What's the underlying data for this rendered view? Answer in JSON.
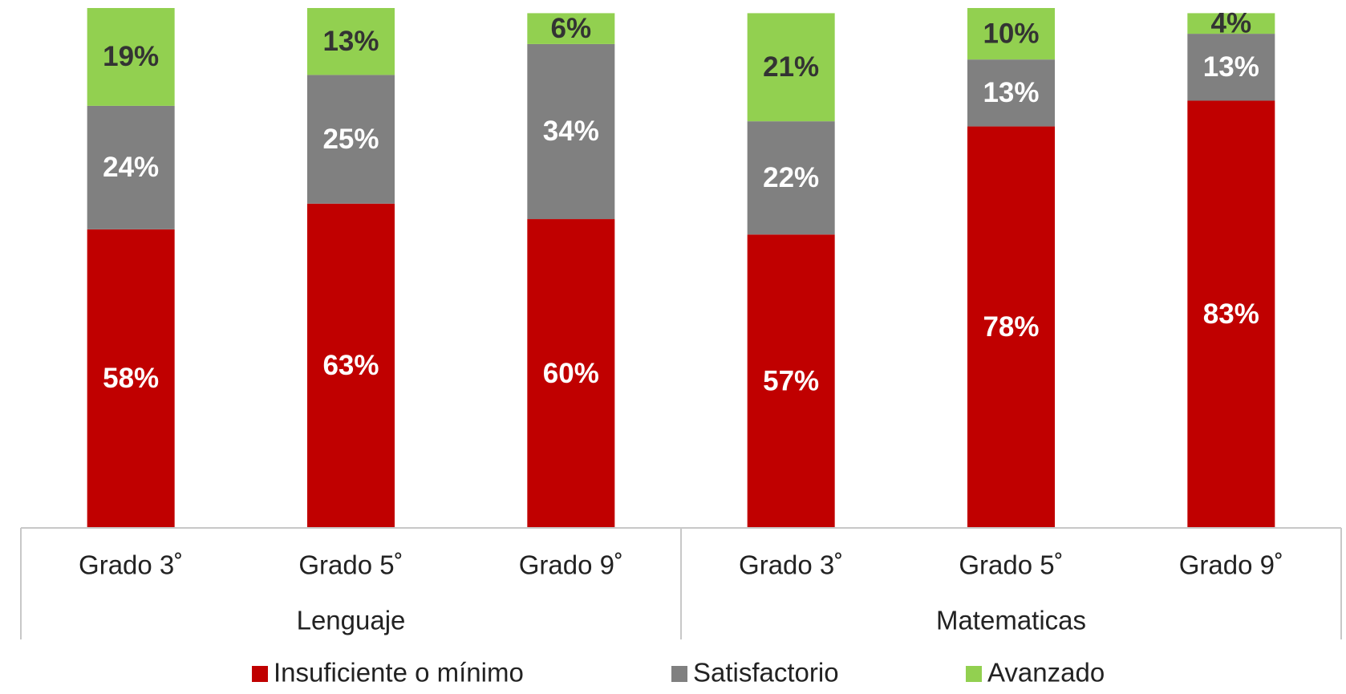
{
  "chart_data": {
    "type": "stacked_bar",
    "groups": [
      {
        "name": "Lenguaje",
        "categories": [
          "Grado 3˚",
          "Grado 5˚",
          "Grado 9˚"
        ]
      },
      {
        "name": "Matematicas",
        "categories": [
          "Grado 3˚",
          "Grado 5˚",
          "Grado 9˚"
        ]
      }
    ],
    "series": [
      {
        "name": "Insuficiente o mínimo",
        "color": "#c00000",
        "label_color": "#ffffff",
        "values": [
          58,
          63,
          60,
          57,
          78,
          83
        ],
        "value_labels": [
          "58%",
          "63%",
          "60%",
          "57%",
          "78%",
          "83%"
        ]
      },
      {
        "name": "Satisfactorio",
        "color": "#808080",
        "label_color": "#ffffff",
        "values": [
          24,
          25,
          34,
          22,
          13,
          13
        ],
        "value_labels": [
          "24%",
          "25%",
          "34%",
          "22%",
          "13%",
          "13%"
        ]
      },
      {
        "name": "Avanzado",
        "color": "#92d050",
        "label_color": "#333333",
        "values": [
          19,
          13,
          6,
          21,
          10,
          4
        ],
        "value_labels": [
          "19%",
          "13%",
          "6%",
          "21%",
          "10%",
          "4%"
        ]
      }
    ],
    "legend": "bottom"
  }
}
